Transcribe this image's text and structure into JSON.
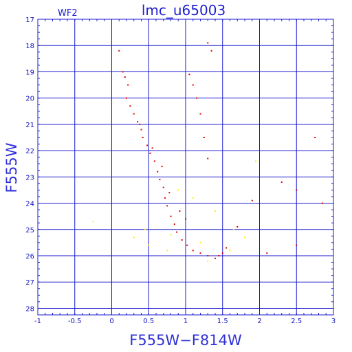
{
  "chart_data": {
    "type": "scatter",
    "title": "lmc_u65003",
    "subtitle": "WF2",
    "xlabel": "F555W−F814W",
    "ylabel": "F555W",
    "xlim": [
      -1,
      3
    ],
    "ylim": [
      28.25,
      17
    ],
    "y_inverted": true,
    "grid": true,
    "xticks": [
      "-1",
      "-0.5",
      "0",
      "0.5",
      "1",
      "1.5",
      "2",
      "2.5",
      "3"
    ],
    "yticks": [
      "17",
      "18",
      "19",
      "20",
      "21",
      "22",
      "23",
      "24",
      "25",
      "26",
      "27",
      "28"
    ],
    "colors": {
      "frame": "#1a1ad0",
      "primary_points": "#e00000",
      "secondary_points": "#ffee00"
    },
    "series": [
      {
        "color": "red",
        "points": [
          [
            0.1,
            18.2
          ],
          [
            0.15,
            19.0
          ],
          [
            0.18,
            19.2
          ],
          [
            0.22,
            19.5
          ],
          [
            0.2,
            20.0
          ],
          [
            0.25,
            20.3
          ],
          [
            0.3,
            20.6
          ],
          [
            0.35,
            20.9
          ],
          [
            0.4,
            21.2
          ],
          [
            0.42,
            21.5
          ],
          [
            0.48,
            21.8
          ],
          [
            0.52,
            22.1
          ],
          [
            0.58,
            22.4
          ],
          [
            0.62,
            22.8
          ],
          [
            0.65,
            23.1
          ],
          [
            0.7,
            23.4
          ],
          [
            0.72,
            23.8
          ],
          [
            0.75,
            24.1
          ],
          [
            0.8,
            24.5
          ],
          [
            0.85,
            24.8
          ],
          [
            0.88,
            25.1
          ],
          [
            0.95,
            25.4
          ],
          [
            1.02,
            25.6
          ],
          [
            1.1,
            25.8
          ],
          [
            1.2,
            25.9
          ],
          [
            1.3,
            26.0
          ],
          [
            1.4,
            26.1
          ],
          [
            1.45,
            26.0
          ],
          [
            1.5,
            25.9
          ],
          [
            1.55,
            25.7
          ],
          [
            1.0,
            24.6
          ],
          [
            0.92,
            24.3
          ],
          [
            0.78,
            23.6
          ],
          [
            0.68,
            22.6
          ],
          [
            0.55,
            21.9
          ],
          [
            0.38,
            21.0
          ],
          [
            1.05,
            19.1
          ],
          [
            1.1,
            19.5
          ],
          [
            1.15,
            20.0
          ],
          [
            1.2,
            20.6
          ],
          [
            1.25,
            21.5
          ],
          [
            1.3,
            22.3
          ],
          [
            1.35,
            18.2
          ],
          [
            1.3,
            17.9
          ],
          [
            1.9,
            23.9
          ],
          [
            2.3,
            23.2
          ],
          [
            2.5,
            23.5
          ],
          [
            2.75,
            21.5
          ],
          [
            2.85,
            24.0
          ],
          [
            2.5,
            25.6
          ],
          [
            2.1,
            25.9
          ],
          [
            1.7,
            24.9
          ]
        ]
      },
      {
        "color": "yellow",
        "points": [
          [
            0.3,
            25.3
          ],
          [
            0.45,
            25.0
          ],
          [
            0.5,
            25.6
          ],
          [
            -0.25,
            24.7
          ],
          [
            0.8,
            25.2
          ],
          [
            1.2,
            25.5
          ],
          [
            1.6,
            25.8
          ],
          [
            1.8,
            25.3
          ],
          [
            1.95,
            22.4
          ],
          [
            1.65,
            25.0
          ],
          [
            1.1,
            23.8
          ],
          [
            1.4,
            24.3
          ],
          [
            0.9,
            23.5
          ],
          [
            0.75,
            25.8
          ],
          [
            1.3,
            26.2
          ]
        ]
      }
    ]
  }
}
